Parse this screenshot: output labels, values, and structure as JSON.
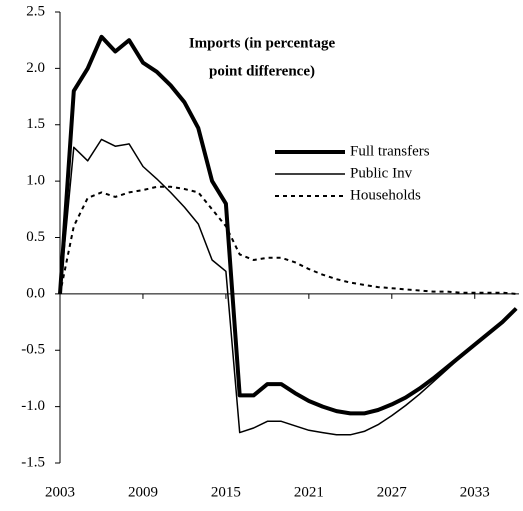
{
  "chart_data": {
    "type": "line",
    "title": [
      "Imports (in percentage",
      "point difference)"
    ],
    "x": [
      2003,
      2004,
      2005,
      2006,
      2007,
      2008,
      2009,
      2010,
      2011,
      2012,
      2013,
      2014,
      2015,
      2016,
      2017,
      2018,
      2019,
      2020,
      2021,
      2022,
      2023,
      2024,
      2025,
      2026,
      2027,
      2028,
      2029,
      2030,
      2031,
      2032,
      2033,
      2034,
      2035,
      2036
    ],
    "xlim": [
      2003,
      2036.2
    ],
    "xticks": [
      2003,
      2009,
      2015,
      2021,
      2027,
      2033
    ],
    "ylim": [
      -1.5,
      2.5
    ],
    "yticks": [
      {
        "value": -1.5,
        "label": "-1.5"
      },
      {
        "value": -1,
        "label": "-1.0"
      },
      {
        "value": -0.5,
        "label": "-0.5"
      },
      {
        "value": 0,
        "label": "0.0"
      },
      {
        "value": 0.5,
        "label": "0.5"
      },
      {
        "value": 1,
        "label": "1.0"
      },
      {
        "value": 1.5,
        "label": "1.5"
      },
      {
        "value": 2,
        "label": "2.0"
      },
      {
        "value": 2.5,
        "label": "2.5"
      }
    ],
    "series": [
      {
        "name": "Full transfers",
        "color": "#000000",
        "line_width": 4,
        "line_style": "solid",
        "values": [
          0,
          1.8,
          2.0,
          2.28,
          2.15,
          2.25,
          2.05,
          1.97,
          1.85,
          1.7,
          1.47,
          1.0,
          0.8,
          -0.9,
          -0.9,
          -0.8,
          -0.8,
          -0.88,
          -0.95,
          -1.0,
          -1.04,
          -1.06,
          -1.06,
          -1.03,
          -0.98,
          -0.92,
          -0.84,
          -0.75,
          -0.65,
          -0.55,
          -0.45,
          -0.35,
          -0.25,
          -0.13
        ]
      },
      {
        "name": "Public Inv",
        "color": "#000000",
        "line_width": 1.5,
        "line_style": "solid",
        "values": [
          0,
          1.3,
          1.18,
          1.37,
          1.31,
          1.33,
          1.13,
          1.02,
          0.9,
          0.77,
          0.62,
          0.3,
          0.2,
          -1.23,
          -1.19,
          -1.13,
          -1.13,
          -1.17,
          -1.21,
          -1.23,
          -1.25,
          -1.25,
          -1.22,
          -1.16,
          -1.08,
          -0.99,
          -0.89,
          -0.78,
          -0.67,
          -0.56,
          -0.46,
          -0.35,
          -0.25,
          -0.13
        ]
      },
      {
        "name": "Households",
        "color": "#000000",
        "line_width": 2,
        "line_style": "dotted",
        "values": [
          0,
          0.6,
          0.85,
          0.9,
          0.86,
          0.9,
          0.92,
          0.95,
          0.95,
          0.93,
          0.9,
          0.75,
          0.6,
          0.35,
          0.3,
          0.32,
          0.32,
          0.28,
          0.22,
          0.17,
          0.13,
          0.1,
          0.08,
          0.06,
          0.05,
          0.04,
          0.03,
          0.02,
          0.02,
          0.01,
          0.01,
          0.01,
          0.01,
          0
        ]
      }
    ]
  }
}
